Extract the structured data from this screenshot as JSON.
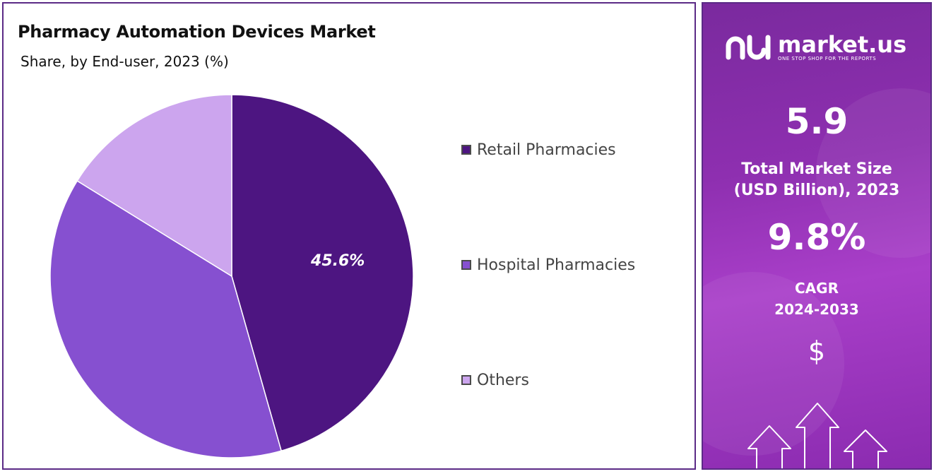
{
  "chart_data": {
    "type": "pie",
    "title": "Pharmacy Automation Devices Market",
    "subtitle": "Share, by End-user, 2023 (%)",
    "legend_placement": "right",
    "categories": [
      "Retail Pharmacies",
      "Hospital Pharmacies",
      "Others"
    ],
    "values": [
      45.6,
      38.2,
      16.2
    ],
    "colors": [
      "#4d1581",
      "#8650d0",
      "#cca5ee"
    ],
    "data_labels": [
      "45.6%",
      "",
      ""
    ]
  },
  "info_panel": {
    "logo_name": "market.us",
    "logo_tagline": "ONE STOP SHOP FOR THE REPORTS",
    "market_size_value": "5.9",
    "market_size_label_line1": "Total Market Size",
    "market_size_label_line2": "(USD Billion), 2023",
    "cagr_value": "9.8%",
    "cagr_label_line1": "CAGR",
    "cagr_label_line2": "2024-2033",
    "dollar_symbol": "$",
    "icons": [
      "market-us-logo-icon",
      "dollar-icon",
      "growth-arrows-icon"
    ]
  }
}
